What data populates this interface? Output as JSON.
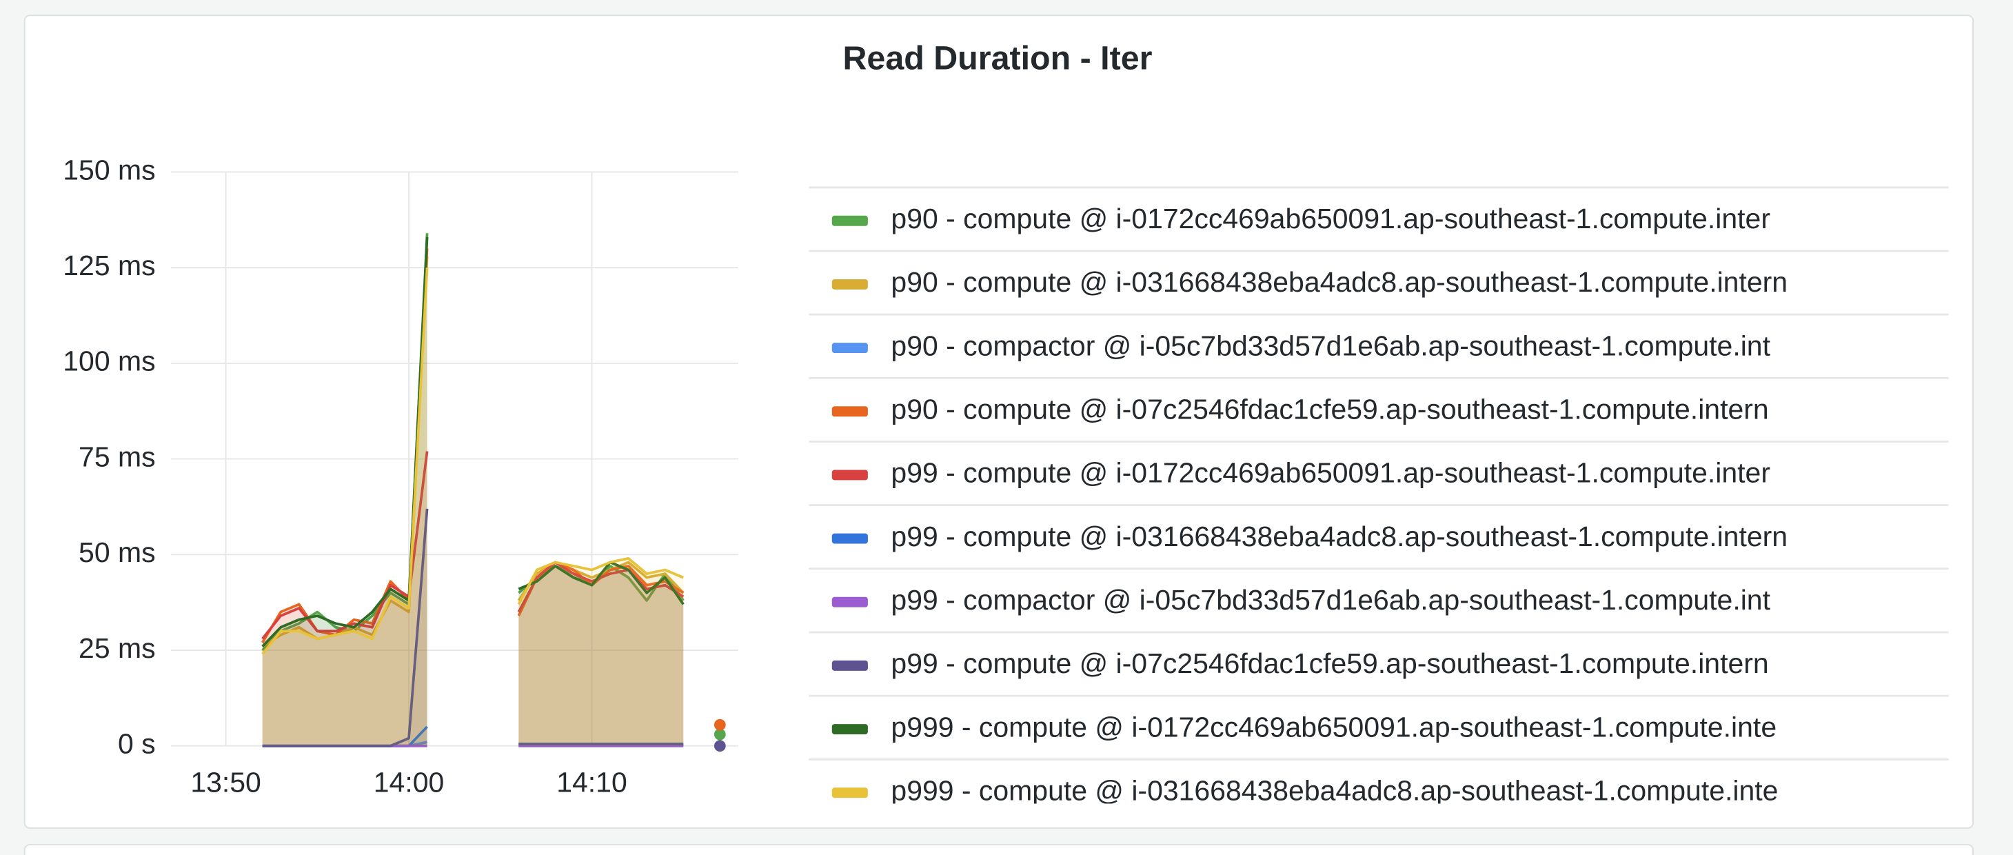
{
  "chart_data": {
    "type": "line",
    "title": "Read Duration - Iter",
    "x": [
      "13:52",
      "13:53",
      "13:54",
      "13:55",
      "13:56",
      "13:57",
      "13:58",
      "13:59",
      "14:00",
      "14:01",
      "14:02",
      "14:03",
      "14:04",
      "14:05",
      "14:06",
      "14:07",
      "14:08",
      "14:09",
      "14:10",
      "14:11",
      "14:12",
      "14:13",
      "14:14",
      "14:15",
      "14:16",
      "14:17"
    ],
    "xlim": [
      "13:47",
      "14:18"
    ],
    "xticks": [
      "13:50",
      "14:00",
      "14:10"
    ],
    "ylim": [
      0,
      150
    ],
    "yticks": [
      {
        "value": 0,
        "label": "0 s"
      },
      {
        "value": 25,
        "label": "25 ms"
      },
      {
        "value": 50,
        "label": "50 ms"
      },
      {
        "value": 75,
        "label": "75 ms"
      },
      {
        "value": 100,
        "label": "100 ms"
      },
      {
        "value": 125,
        "label": "125 ms"
      },
      {
        "value": 150,
        "label": "150 ms"
      }
    ],
    "grid": true,
    "legend": "right",
    "series": [
      {
        "name": "p90 - compute @ i-0172cc469ab650091.ap-southeast-1.compute.inter",
        "color": "#56a64b",
        "values": [
          25,
          30,
          32,
          35,
          31,
          30,
          34,
          40,
          37,
          134,
          null,
          null,
          null,
          null,
          40,
          44,
          47,
          45,
          42,
          47,
          44,
          38,
          45,
          38,
          null,
          3
        ]
      },
      {
        "name": "p90 - compute @ i-031668438eba4adc8.ap-southeast-1.compute.intern",
        "color": "#d9ac34",
        "values": [
          26,
          29,
          31,
          28,
          29,
          31,
          29,
          38,
          35,
          128,
          null,
          null,
          null,
          null,
          38,
          45,
          48,
          46,
          44,
          46,
          48,
          44,
          45,
          40,
          null,
          null
        ]
      },
      {
        "name": "p90 - compactor @ i-05c7bd33d57d1e6ab.ap-southeast-1.compute.int",
        "color": "#5794f2",
        "values": [
          0,
          0,
          0,
          0,
          0,
          0,
          0,
          0,
          0,
          1,
          null,
          null,
          null,
          null,
          0,
          0,
          0,
          0,
          0,
          0,
          0,
          0,
          0,
          0,
          null,
          null
        ]
      },
      {
        "name": "p90 - compute @ i-07c2546fdac1cfe59.ap-southeast-1.compute.intern",
        "color": "#e8651f",
        "values": [
          27,
          35,
          37,
          30,
          29,
          33,
          32,
          43,
          38,
          130,
          null,
          null,
          null,
          null,
          34,
          44,
          48,
          46,
          42,
          46,
          47,
          42,
          43,
          40,
          null,
          5.5
        ]
      },
      {
        "name": "p99 - compute @ i-0172cc469ab650091.ap-southeast-1.compute.inter",
        "color": "#d94040",
        "values": [
          28,
          34,
          36,
          30,
          30,
          32,
          31,
          42,
          39,
          77,
          null,
          null,
          null,
          null,
          35,
          44,
          48,
          45,
          43,
          45,
          46,
          41,
          42,
          39,
          null,
          null
        ]
      },
      {
        "name": "p99 - compute @ i-031668438eba4adc8.ap-southeast-1.compute.intern",
        "color": "#3274d9",
        "values": [
          0,
          0,
          0,
          0,
          0,
          0,
          0,
          0,
          0,
          5,
          null,
          null,
          null,
          null,
          0.5,
          0.5,
          0.5,
          0.5,
          0.5,
          0.5,
          0.5,
          0.5,
          0.5,
          0.5,
          null,
          null
        ]
      },
      {
        "name": "p99 - compactor @ i-05c7bd33d57d1e6ab.ap-southeast-1.compute.int",
        "color": "#9b5bd1",
        "values": [
          0,
          0,
          0,
          0,
          0,
          0,
          0,
          0,
          0,
          0,
          null,
          null,
          null,
          null,
          0,
          0,
          0,
          0,
          0,
          0,
          0,
          0,
          0,
          0,
          null,
          null
        ]
      },
      {
        "name": "p99 - compute @ i-07c2546fdac1cfe59.ap-southeast-1.compute.intern",
        "color": "#5f5291",
        "values": [
          0,
          0,
          0,
          0,
          0,
          0,
          0,
          0,
          2,
          62,
          null,
          null,
          null,
          null,
          0.5,
          0.5,
          0.5,
          0.5,
          0.5,
          0.5,
          0.5,
          0.5,
          0.5,
          0.5,
          null,
          0
        ]
      },
      {
        "name": "p999 - compute @ i-0172cc469ab650091.ap-southeast-1.compute.inte",
        "color": "#2e6b25",
        "values": [
          26,
          31,
          33,
          34,
          32,
          31,
          35,
          41,
          38,
          133,
          null,
          null,
          null,
          null,
          41,
          43,
          47,
          44,
          42,
          48,
          46,
          40,
          44,
          37,
          null,
          null
        ]
      },
      {
        "name": "p999 - compute @ i-031668438eba4adc8.ap-southeast-1.compute.inte",
        "color": "#e8c33a",
        "values": [
          24,
          30,
          30,
          28,
          29,
          30,
          28,
          39,
          36,
          125,
          null,
          null,
          null,
          null,
          37,
          46,
          48,
          47,
          46,
          48,
          49,
          45,
          46,
          44,
          null,
          null
        ]
      }
    ]
  }
}
